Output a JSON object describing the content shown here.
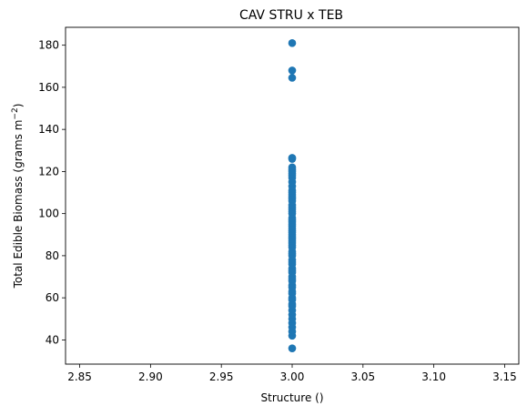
{
  "chart_data": {
    "type": "scatter",
    "title": "CAV STRU x TEB",
    "xlabel": "Structure ()",
    "ylabel_main": "Total Edible Biomass (grams m",
    "ylabel_sup": "−2",
    "ylabel_close": ")",
    "xlim": [
      2.84,
      3.16
    ],
    "ylim": [
      28.5,
      188.5
    ],
    "xticks": [
      2.85,
      2.9,
      2.95,
      3.0,
      3.05,
      3.1,
      3.15
    ],
    "xtick_labels": [
      "2.85",
      "2.90",
      "2.95",
      "3.00",
      "3.05",
      "3.10",
      "3.15"
    ],
    "yticks": [
      40,
      60,
      80,
      100,
      120,
      140,
      160,
      180
    ],
    "ytick_labels": [
      "40",
      "60",
      "80",
      "100",
      "120",
      "140",
      "160",
      "180"
    ],
    "grid": false,
    "legend": "none",
    "marker_color": "#1f77b4",
    "series": [
      {
        "x": [
          3.0,
          3.0,
          3.0,
          3.0,
          3.0,
          3.0,
          3.0,
          3.0,
          3.0,
          3.0,
          3.0,
          3.0,
          3.0,
          3.0,
          3.0,
          3.0,
          3.0,
          3.0,
          3.0,
          3.0,
          3.0,
          3.0,
          3.0,
          3.0,
          3.0,
          3.0,
          3.0,
          3.0,
          3.0,
          3.0,
          3.0,
          3.0,
          3.0,
          3.0,
          3.0,
          3.0,
          3.0,
          3.0,
          3.0,
          3.0,
          3.0,
          3.0,
          3.0,
          3.0,
          3.0,
          3.0,
          3.0,
          3.0,
          3.0,
          3.0,
          3.0,
          3.0,
          3.0,
          3.0,
          3.0,
          3.0,
          3.0,
          3.0,
          3.0,
          3.0,
          3.0,
          3.0,
          3.0,
          3.0,
          3.0,
          3.0,
          3.0
        ],
        "y": [
          36,
          42,
          44,
          46,
          48,
          50,
          52,
          54,
          56,
          57,
          59,
          60,
          62,
          63,
          65,
          66,
          68,
          69,
          70,
          72,
          73,
          74,
          76,
          77,
          78,
          80,
          81,
          82,
          84,
          85,
          86,
          87,
          88,
          89,
          90,
          91,
          92,
          93,
          94,
          95,
          96,
          97,
          98,
          100,
          101,
          102,
          103,
          104,
          106,
          107,
          108,
          109,
          110,
          111,
          113,
          115,
          117,
          118,
          119,
          120,
          121,
          122,
          126,
          126.5,
          164.5,
          168,
          181
        ]
      }
    ]
  }
}
